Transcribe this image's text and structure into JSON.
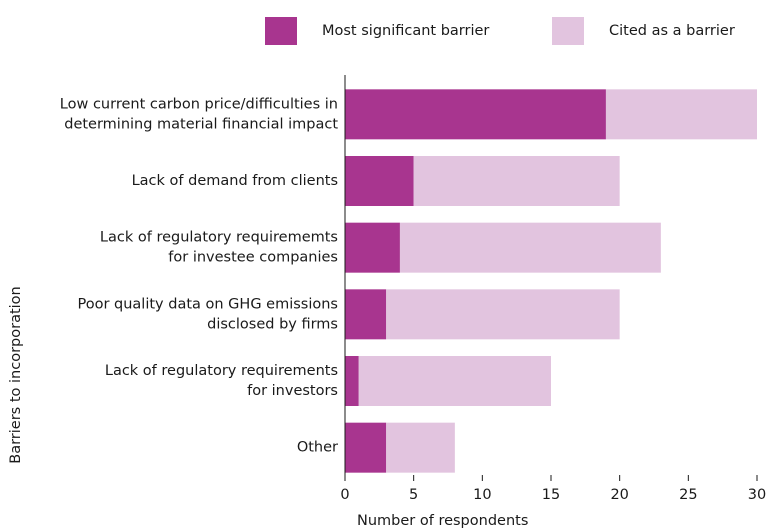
{
  "chart_data": {
    "type": "barh_stacked",
    "categories": [
      [
        "Low current carbon price/difficulties in",
        "determining material financial impact"
      ],
      [
        "Lack of demand from clients"
      ],
      [
        "Lack of regulatory requirememts",
        "for investee companies"
      ],
      [
        "Poor quality data on GHG emissions",
        "disclosed by firms"
      ],
      [
        "Lack of regulatory requirements",
        "for investors"
      ],
      [
        "Other"
      ]
    ],
    "series": [
      {
        "name": "Most significant barrier",
        "color": "#a8358f",
        "values": [
          19,
          5,
          4,
          3,
          1,
          3
        ]
      },
      {
        "name": "Cited as a barrier",
        "color": "#e2c4df",
        "values": [
          11,
          15,
          19,
          17,
          14,
          5
        ]
      }
    ],
    "xlim": [
      0,
      30
    ],
    "xticks": [
      0,
      5,
      10,
      15,
      20,
      25,
      30
    ],
    "xlabel": "Number of respondents",
    "ylabel": "Barriers to incorporation"
  }
}
